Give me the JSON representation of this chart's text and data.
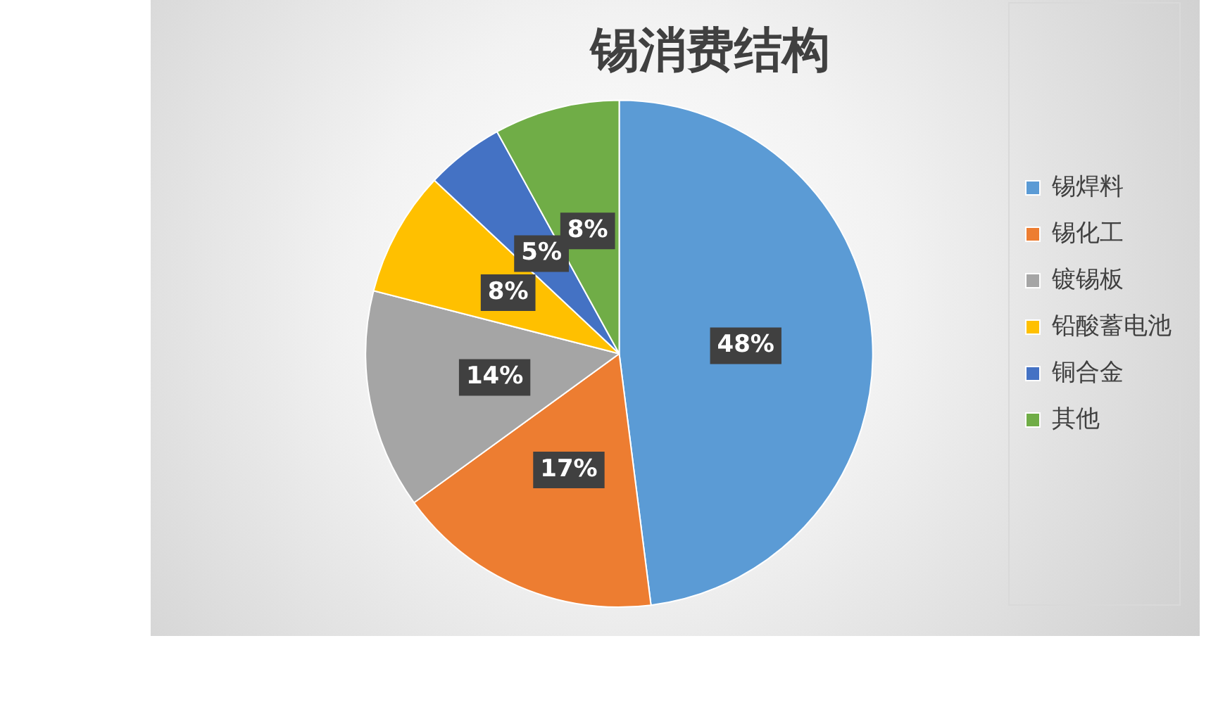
{
  "chart_data": {
    "type": "pie",
    "title": "锡消费结构",
    "categories": [
      "锡焊料",
      "锡化工",
      "镀锡板",
      "铅酸蓄电池",
      "铜合金",
      "其他"
    ],
    "values": [
      48,
      17,
      14,
      8,
      5,
      8
    ],
    "colors": [
      "#5b9bd5",
      "#ed7d31",
      "#a5a5a5",
      "#ffc000",
      "#4472c4",
      "#70ad47"
    ],
    "value_labels": [
      "48%",
      "17%",
      "14%",
      "8%",
      "5%",
      "8%"
    ],
    "legend": "right"
  }
}
